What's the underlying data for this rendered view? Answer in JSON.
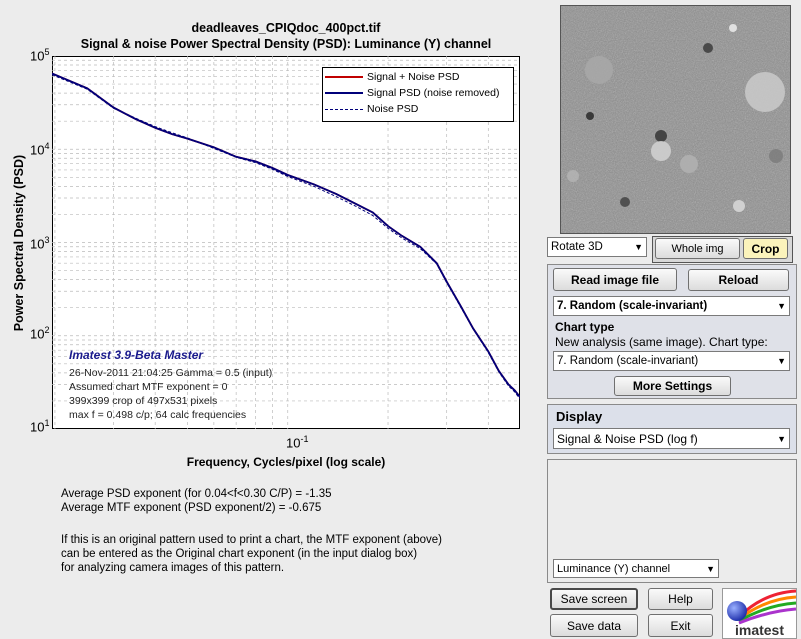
{
  "chart_data": {
    "type": "line",
    "title": "deadleaves_CPIQdoc_400pct.tif",
    "subtitle": "Signal & noise Power Spectral Density (PSD):  Luminance (Y) channel",
    "xlabel": "Frequency, Cycles/pixel (log scale)",
    "ylabel": "Power Spectral Density (PSD)",
    "xscale": "log",
    "yscale": "log",
    "xlim": [
      0.0196,
      0.498
    ],
    "ylim": [
      10,
      100000
    ],
    "grid": true,
    "legend_position": "top-right",
    "y_ticks": [
      {
        "base": "10",
        "exp": "5"
      },
      {
        "base": "10",
        "exp": "4"
      },
      {
        "base": "10",
        "exp": "3"
      },
      {
        "base": "10",
        "exp": "2"
      },
      {
        "base": "10",
        "exp": "1"
      }
    ],
    "x_ticks": [
      {
        "base": "10",
        "exp": "-1"
      }
    ],
    "series": [
      {
        "name": "Signal + Noise PSD",
        "color": "#c00000",
        "x": [
          0.0196,
          0.025,
          0.03,
          0.035,
          0.04,
          0.045,
          0.05,
          0.06,
          0.07,
          0.08,
          0.09,
          0.1,
          0.12,
          0.14,
          0.16,
          0.18,
          0.2,
          0.22,
          0.25,
          0.28,
          0.3,
          0.33,
          0.36,
          0.4,
          0.43,
          0.46,
          0.48,
          0.498
        ],
        "y": [
          65000,
          45000,
          28000,
          21000,
          17000,
          14500,
          13000,
          10500,
          8300,
          7400,
          6300,
          5300,
          4200,
          3300,
          2600,
          2100,
          1500,
          1180,
          900,
          600,
          380,
          210,
          120,
          68,
          42,
          30,
          26,
          22
        ]
      },
      {
        "name": "Signal PSD (noise removed)",
        "color": "#00007a",
        "x": [
          0.0196,
          0.025,
          0.03,
          0.035,
          0.04,
          0.045,
          0.05,
          0.06,
          0.07,
          0.08,
          0.09,
          0.1,
          0.12,
          0.14,
          0.16,
          0.18,
          0.2,
          0.22,
          0.25,
          0.28,
          0.3,
          0.33,
          0.36,
          0.4,
          0.43,
          0.46,
          0.48,
          0.498
        ],
        "y": [
          65000,
          45000,
          28000,
          21000,
          17000,
          14500,
          13000,
          10500,
          8300,
          7400,
          6300,
          5300,
          4200,
          3300,
          2600,
          2100,
          1500,
          1180,
          900,
          600,
          380,
          210,
          120,
          68,
          42,
          30,
          26,
          22
        ]
      },
      {
        "name": "Noise PSD",
        "color": "#00007a",
        "dashed": true,
        "x": [
          0.0196,
          0.025,
          0.03,
          0.035,
          0.04,
          0.045,
          0.05,
          0.06,
          0.07,
          0.08,
          0.09,
          0.1,
          0.12,
          0.14,
          0.16,
          0.18,
          0.2,
          0.22,
          0.25,
          0.28,
          0.3,
          0.33,
          0.36,
          0.4,
          0.43,
          0.46,
          0.48,
          0.498
        ],
        "y": [
          63000,
          44000,
          27500,
          21500,
          17500,
          15000,
          13200,
          10200,
          8200,
          7200,
          6100,
          5100,
          4000,
          3100,
          2450,
          1950,
          1420,
          1120,
          860,
          590,
          370,
          205,
          118,
          66,
          41,
          29,
          25,
          21
        ]
      }
    ]
  },
  "overlay": {
    "brand": "Imatest 3.9-Beta Master",
    "lines": [
      "26-Nov-2011 21:04:25    Gamma = 0.5 (input)",
      "Assumed chart MTF exponent = 0",
      "399x399 crop of 497x531 pixels",
      "max f = 0.498 c/p;  64 calc frequencies"
    ]
  },
  "results": [
    "Average PSD exponent (for 0.04<f<0.30 C/P) = -1.35",
    "Average MTF exponent (PSD exponent/2) = -0.675",
    "",
    "If this is an original pattern used to print a chart, the MTF exponent (above)",
    "can be entered as the Original chart exponent (in the input dialog box)",
    "for analyzing camera images of this pattern."
  ],
  "controls": {
    "rotate_select": "Rotate 3D",
    "whole_img_label": "Whole img",
    "crop_label": "Crop",
    "read_image_label": "Read image file",
    "reload_label": "Reload",
    "chart_select": "7. Random (scale-invariant)",
    "chart_type_heading": "Chart type",
    "new_analysis_label": "New analysis (same image). Chart type:",
    "chart_type_select": "7. Random (scale-invariant)",
    "more_settings_label": "More Settings",
    "display_heading": "Display",
    "display_select": "Signal & Noise PSD (log f)",
    "channel_select": "Luminance (Y) channel",
    "save_screen_label": "Save screen",
    "help_label": "Help",
    "save_data_label": "Save data",
    "exit_label": "Exit",
    "logo_text": "imatest"
  },
  "colors": {
    "signal_plus_noise": "#c00000",
    "signal": "#00007a",
    "noise": "#00007a",
    "brand": "#1a1a8c",
    "crop_bg": "#fbf3bb",
    "display_panel": "#dce0ea"
  }
}
